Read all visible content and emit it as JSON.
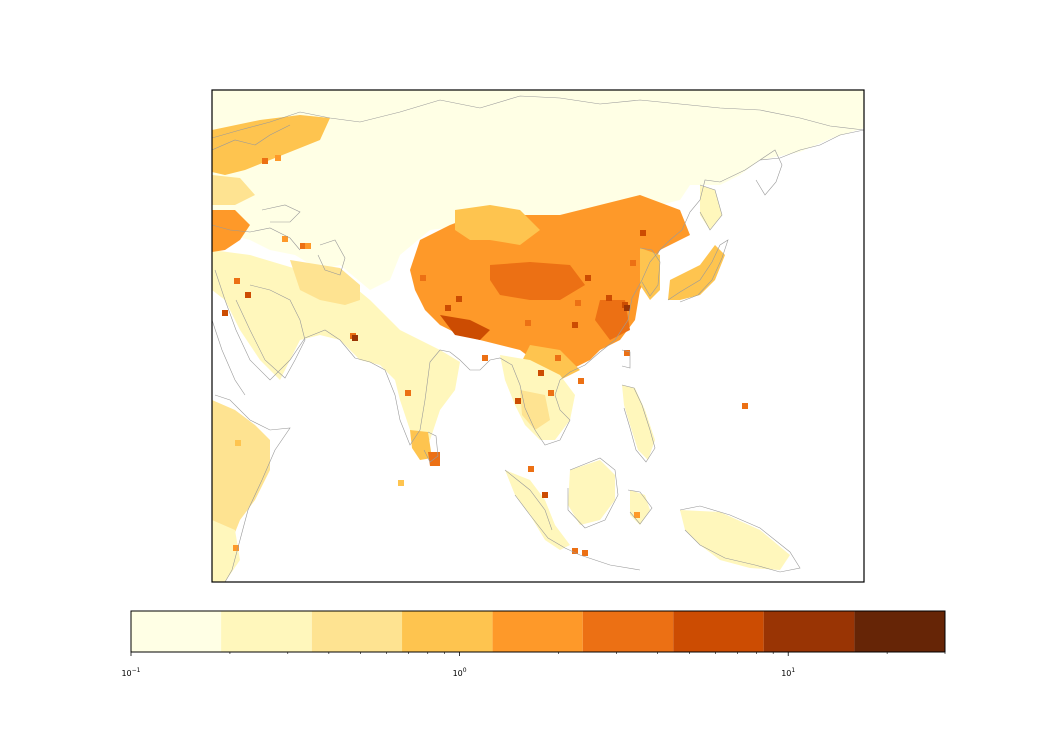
{
  "map": {
    "region": "Asia",
    "projection": "plate-carree",
    "lon_range": [
      25,
      180
    ],
    "lat_range": [
      -12,
      78
    ],
    "colors": {
      "land_fill": "#ffffff",
      "coastline": "#9a9a9a",
      "frame": "#000000",
      "ocean": "#ffffff"
    }
  },
  "colorbar": {
    "scale": "log",
    "vmin": 0.1,
    "vmax": 30,
    "boundaries": [
      0.1,
      0.188,
      0.355,
      0.668,
      1.26,
      2.37,
      4.47,
      8.42,
      15.9,
      30
    ],
    "colors": [
      "#ffffe5",
      "#fff7bc",
      "#fee391",
      "#fec44f",
      "#fe9929",
      "#ec7014",
      "#cc4c02",
      "#993404",
      "#662506"
    ],
    "ticks": [
      {
        "value": 0.1,
        "base": "10",
        "exp": "−1"
      },
      {
        "value": 1,
        "base": "10",
        "exp": "0"
      },
      {
        "value": 10,
        "base": "10",
        "exp": "1"
      }
    ],
    "minor_ticks": [
      0.2,
      0.3,
      0.4,
      0.5,
      0.6,
      0.7,
      0.8,
      0.9,
      2,
      3,
      4,
      5,
      6,
      7,
      8,
      9,
      20,
      30
    ]
  }
}
